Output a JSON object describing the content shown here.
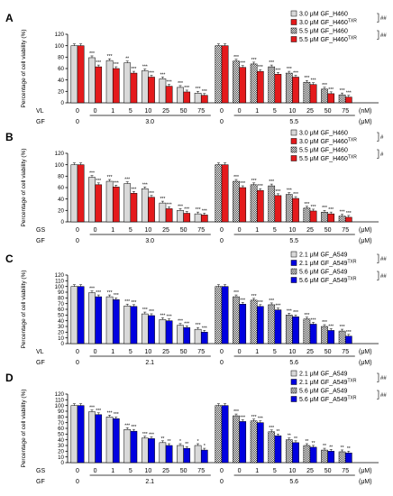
{
  "chart_data": [
    {
      "type": "bar",
      "panel": "A",
      "ylabel": "Percentage of cell viability (%)",
      "ylim": [
        0,
        120
      ],
      "yticks": [
        0,
        20,
        40,
        60,
        80,
        100,
        120
      ],
      "grid": false,
      "legend_position": "top-right",
      "row_labels": [
        "VL",
        "GF"
      ],
      "unit": "(nM)",
      "categories": [
        "0",
        "0",
        "1",
        "5",
        "10",
        "25",
        "50",
        "75"
      ],
      "groups": [
        {
          "gf": "3.0",
          "series": [
            {
              "name": "3.0 μM GF_H460",
              "color": "#d9d9d9",
              "pattern": "solid",
              "values": [
                100,
                79,
                74,
                70,
                56,
                42,
                27,
                17
              ],
              "sig": [
                "",
                "***",
                "***",
                "**",
                "***",
                "***",
                "***",
                "***"
              ]
            },
            {
              "name": "3.0 μM GF_H460TXR",
              "color": "#e41a1c",
              "pattern": "solid",
              "values": [
                100,
                63,
                60,
                52,
                45,
                29,
                19,
                13
              ],
              "sig": [
                "",
                "***",
                "***",
                "***",
                "***",
                "***",
                "***",
                "***"
              ]
            }
          ]
        },
        {
          "gf": "5.5",
          "series": [
            {
              "name": "5.5 μM GF_H460",
              "color": "#d9d9d9",
              "pattern": "checker",
              "values": [
                100,
                73,
                68,
                63,
                52,
                36,
                24,
                14
              ],
              "sig": [
                "",
                "***",
                "***",
                "***",
                "***",
                "***",
                "***",
                "***"
              ]
            },
            {
              "name": "5.5 μM GF_H460TXR",
              "color": "#e41a1c",
              "pattern": "solid",
              "values": [
                100,
                62,
                55,
                50,
                45,
                32,
                16,
                10
              ],
              "sig": [
                "",
                "***",
                "***",
                "***",
                "***",
                "***",
                "***",
                "***"
              ]
            }
          ]
        }
      ],
      "significance_brackets": [
        "##",
        "##"
      ]
    },
    {
      "type": "bar",
      "panel": "B",
      "ylabel": "Percentage of cell viability (%)",
      "ylim": [
        0,
        120
      ],
      "yticks": [
        0,
        20,
        40,
        60,
        80,
        100,
        120
      ],
      "grid": false,
      "legend_position": "top-right",
      "row_labels": [
        "GS",
        "GF"
      ],
      "unit": "(μM)",
      "categories": [
        "0",
        "0",
        "1",
        "5",
        "10",
        "25",
        "50",
        "75"
      ],
      "groups": [
        {
          "gf": "3.0",
          "series": [
            {
              "name": "3.0 μM GF_H460",
              "color": "#d9d9d9",
              "pattern": "solid",
              "values": [
                100,
                78,
                71,
                67,
                58,
                33,
                20,
                14
              ],
              "sig": [
                "",
                "***",
                "***",
                "***",
                "***",
                "***",
                "***",
                "***"
              ]
            },
            {
              "name": "3.0 μM GF_H460TXR",
              "color": "#e41a1c",
              "pattern": "solid",
              "values": [
                100,
                65,
                61,
                50,
                43,
                23,
                15,
                12
              ],
              "sig": [
                "",
                "***",
                "***",
                "***",
                "***",
                "***",
                "***",
                "***"
              ]
            }
          ]
        },
        {
          "gf": "5.5",
          "series": [
            {
              "name": "5.5 μM GF_H460",
              "color": "#d9d9d9",
              "pattern": "checker",
              "values": [
                100,
                71,
                65,
                63,
                48,
                24,
                17,
                10
              ],
              "sig": [
                "",
                "***",
                "***",
                "***",
                "***",
                "***",
                "***",
                "***"
              ]
            },
            {
              "name": "5.5 μM GF_H460TXR",
              "color": "#e41a1c",
              "pattern": "solid",
              "values": [
                100,
                60,
                55,
                46,
                41,
                19,
                14,
                8
              ],
              "sig": [
                "",
                "***",
                "***",
                "***",
                "***",
                "***",
                "***",
                "***"
              ]
            }
          ]
        }
      ],
      "significance_brackets": [
        "#",
        "#"
      ]
    },
    {
      "type": "bar",
      "panel": "C",
      "ylabel": "Percentage of cell viability (%)",
      "ylim": [
        0,
        120
      ],
      "yticks": [
        0,
        10,
        20,
        30,
        40,
        50,
        60,
        70,
        80,
        90,
        100,
        110,
        120
      ],
      "grid": false,
      "legend_position": "top-right",
      "row_labels": [
        "VL",
        "GF"
      ],
      "unit": "(μM)",
      "categories": [
        "0",
        "0",
        "1",
        "5",
        "10",
        "25",
        "50",
        "75"
      ],
      "groups": [
        {
          "gf": "2.1",
          "series": [
            {
              "name": "2.1 μM GF_A549",
              "color": "#d9d9d9",
              "pattern": "solid",
              "values": [
                100,
                89,
                82,
                66,
                52,
                42,
                32,
                25
              ],
              "sig": [
                "",
                "***",
                "***",
                "***",
                "***",
                "***",
                "***",
                "***"
              ]
            },
            {
              "name": "2.1 μM GF_A549TXR",
              "color": "#0000e0",
              "pattern": "solid",
              "values": [
                100,
                82,
                77,
                65,
                49,
                40,
                28,
                20
              ],
              "sig": [
                "",
                "***",
                "***",
                "***",
                "***",
                "***",
                "***",
                "***"
              ]
            }
          ]
        },
        {
          "gf": "5.6",
          "series": [
            {
              "name": "5.6 μM GF_A549",
              "color": "#d9d9d9",
              "pattern": "checker",
              "values": [
                100,
                82,
                76,
                68,
                50,
                43,
                30,
                22
              ],
              "sig": [
                "",
                "***",
                "***",
                "***",
                "***",
                "***",
                "***",
                "***"
              ]
            },
            {
              "name": "5.6 μM GF_A549TXR",
              "color": "#0000e0",
              "pattern": "solid",
              "values": [
                100,
                69,
                65,
                59,
                47,
                34,
                23,
                13
              ],
              "sig": [
                "",
                "***",
                "***",
                "***",
                "***",
                "***",
                "***",
                "***"
              ]
            }
          ]
        }
      ],
      "significance_brackets": [
        "##",
        "##"
      ]
    },
    {
      "type": "bar",
      "panel": "D",
      "ylabel": "Percentage of cell viability (%)",
      "ylim": [
        0,
        120
      ],
      "yticks": [
        0,
        10,
        20,
        30,
        40,
        50,
        60,
        70,
        80,
        90,
        100,
        110,
        120
      ],
      "grid": false,
      "legend_position": "top-right",
      "row_labels": [
        "GS",
        "GF"
      ],
      "unit": "(μM)",
      "categories": [
        "0",
        "0",
        "1",
        "5",
        "10",
        "25",
        "50",
        "75"
      ],
      "groups": [
        {
          "gf": "2.1",
          "series": [
            {
              "name": "2.1 μM GF_A549",
              "color": "#d9d9d9",
              "pattern": "solid",
              "values": [
                100,
                89,
                80,
                58,
                43,
                35,
                30,
                30
              ],
              "sig": [
                "",
                "***",
                "***",
                "***",
                "***",
                "**",
                "*",
                "*"
              ]
            },
            {
              "name": "2.1 μM GF_A549TXR",
              "color": "#0000e0",
              "pattern": "solid",
              "values": [
                100,
                84,
                77,
                55,
                42,
                30,
                25,
                22
              ],
              "sig": [
                "",
                "***",
                "***",
                "***",
                "***",
                "**",
                "**",
                "*"
              ]
            }
          ]
        },
        {
          "gf": "5.6",
          "series": [
            {
              "name": "5.6 μM GF_A549",
              "color": "#d9d9d9",
              "pattern": "checker",
              "values": [
                100,
                82,
                73,
                54,
                40,
                30,
                22,
                19
              ],
              "sig": [
                "",
                "***",
                "***",
                "***",
                "**",
                "**",
                "**",
                "**"
              ]
            },
            {
              "name": "5.6 μM GF_A549TXR",
              "color": "#0000e0",
              "pattern": "solid",
              "values": [
                100,
                72,
                70,
                47,
                35,
                27,
                20,
                17
              ],
              "sig": [
                "",
                "***",
                "***",
                "**",
                "**",
                "**",
                "**",
                "**"
              ]
            }
          ]
        }
      ],
      "significance_brackets": [
        "##",
        "##"
      ]
    }
  ]
}
